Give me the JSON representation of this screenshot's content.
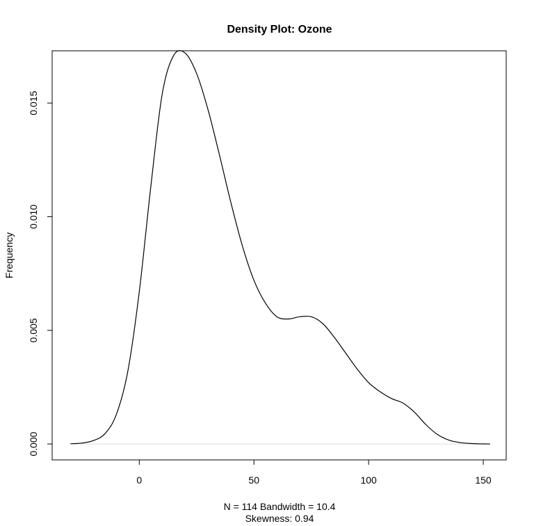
{
  "chart_data": {
    "type": "line",
    "title": "Density Plot: Ozone",
    "xlabel_line1": "N = 114   Bandwidth = 10.4",
    "xlabel_line2": "Skewness: 0.94",
    "ylabel": "Frequency",
    "xlim": [
      -38,
      160
    ],
    "ylim": [
      -0.0007,
      0.0173
    ],
    "x_ticks": [
      0,
      50,
      100,
      150
    ],
    "x_tick_labels": [
      "0",
      "50",
      "100",
      "150"
    ],
    "y_ticks": [
      0,
      0.005,
      0.01,
      0.015
    ],
    "y_tick_labels": [
      "0.000",
      "0.005",
      "0.010",
      "0.015"
    ],
    "grid": false,
    "series": [
      {
        "x": [
          -30,
          -25,
          -20,
          -15,
          -10,
          -5,
          0,
          5,
          10,
          15,
          20,
          25,
          30,
          35,
          40,
          45,
          50,
          55,
          60,
          65,
          70,
          75,
          80,
          85,
          90,
          95,
          100,
          105,
          110,
          115,
          120,
          125,
          130,
          135,
          140,
          145,
          150,
          153
        ],
        "y": [
          1e-05,
          4e-05,
          0.00015,
          0.00045,
          0.0013,
          0.0032,
          0.0067,
          0.0113,
          0.0154,
          0.0171,
          0.0172,
          0.0163,
          0.0147,
          0.0127,
          0.0106,
          0.0087,
          0.0072,
          0.0062,
          0.0056,
          0.0055,
          0.0056,
          0.0056,
          0.0053,
          0.0047,
          0.004,
          0.0033,
          0.0027,
          0.0023,
          0.002,
          0.0018,
          0.0014,
          0.00085,
          0.00042,
          0.00017,
          6e-05,
          2e-05,
          5e-06,
          2e-06
        ]
      }
    ]
  }
}
